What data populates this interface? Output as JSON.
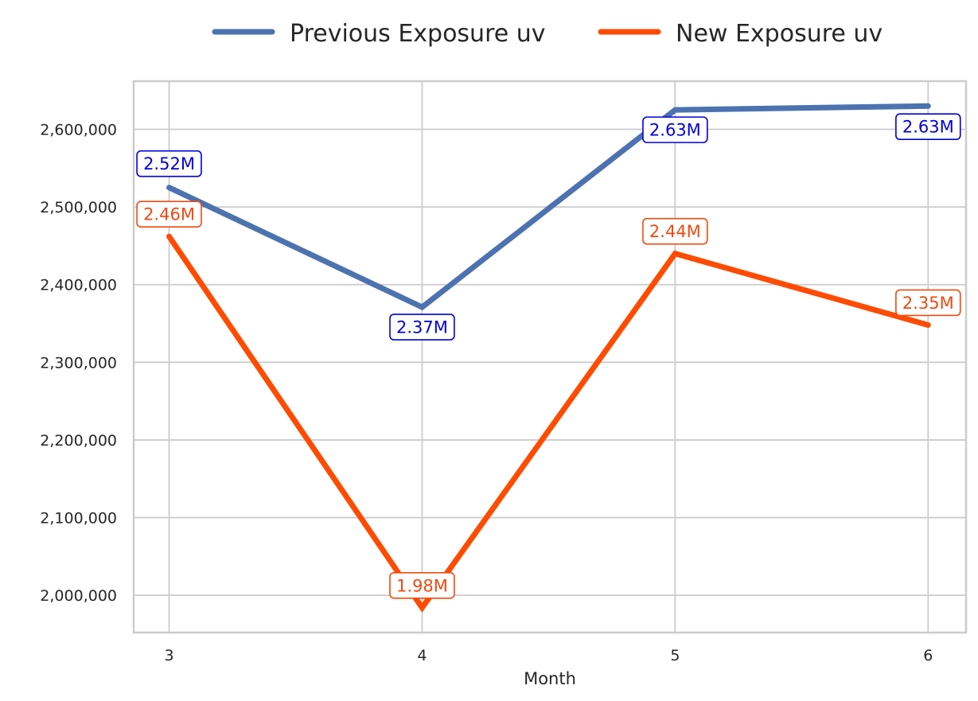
{
  "chart_data": {
    "type": "line",
    "title": "",
    "xlabel": "Month",
    "ylabel": "",
    "x": [
      3,
      4,
      5,
      6
    ],
    "x_tick_labels": [
      "3",
      "4",
      "5",
      "6"
    ],
    "y_ticks": [
      2000000,
      2100000,
      2200000,
      2300000,
      2400000,
      2500000,
      2600000
    ],
    "y_tick_labels": [
      "2,000,000",
      "2,100,000",
      "2,200,000",
      "2,300,000",
      "2,400,000",
      "2,500,000",
      "2,600,000"
    ],
    "xlim": [
      2.86,
      6.15
    ],
    "ylim": [
      1952000,
      2662000
    ],
    "grid": true,
    "legend": "top-center",
    "series": [
      {
        "name": "Previous Exposure uv",
        "color": "#4c72b0",
        "label_color": "#0000dd",
        "values": [
          2525000,
          2371000,
          2625000,
          2630000
        ],
        "labels": [
          "2.52M",
          "2.37M",
          "2.63M",
          "2.63M"
        ]
      },
      {
        "name": "New Exposure uv",
        "color": "#ff4b00",
        "label_color": "#f04a10",
        "values": [
          2462000,
          1984000,
          2440000,
          2348000
        ],
        "labels": [
          "2.46M",
          "1.98M",
          "2.44M",
          "2.35M"
        ]
      }
    ]
  }
}
